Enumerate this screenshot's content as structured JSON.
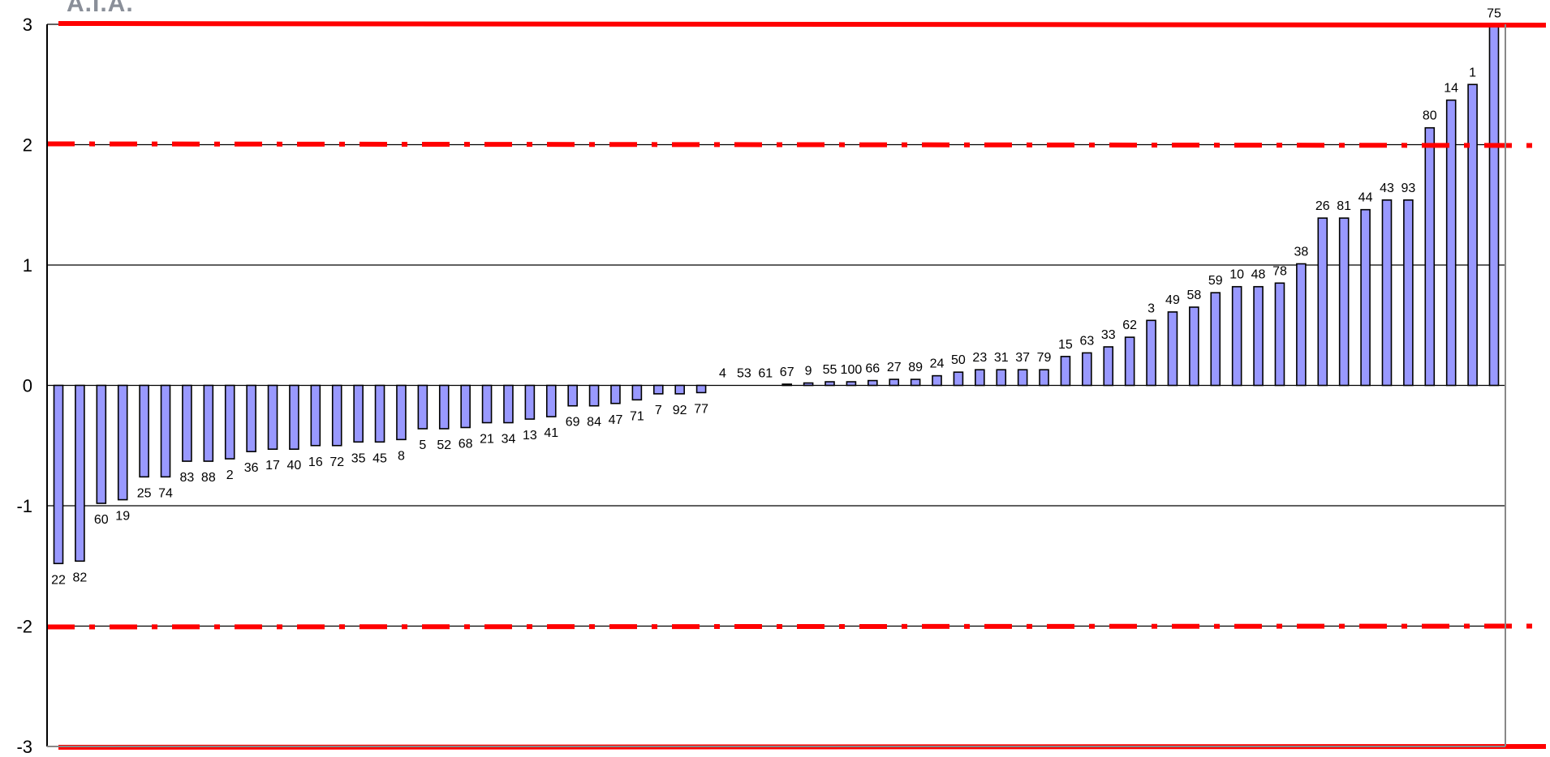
{
  "header": {
    "corner_text": "A.I.A."
  },
  "chart_data": {
    "type": "bar",
    "title": "",
    "xlabel": "",
    "ylabel": "",
    "ylim": [
      -3,
      3
    ],
    "yticks": [
      3,
      2,
      1,
      0,
      -1,
      -2,
      -3
    ],
    "grid": true,
    "categories": [
      "22",
      "82",
      "60",
      "19",
      "25",
      "74",
      "83",
      "88",
      "2",
      "36",
      "17",
      "40",
      "16",
      "72",
      "35",
      "45",
      "8",
      "5",
      "52",
      "68",
      "21",
      "34",
      "13",
      "41",
      "69",
      "84",
      "47",
      "71",
      "7",
      "92",
      "77",
      "4",
      "53",
      "61",
      "67",
      "9",
      "55",
      "100",
      "66",
      "27",
      "89",
      "24",
      "50",
      "23",
      "31",
      "37",
      "79",
      "15",
      "63",
      "33",
      "62",
      "3",
      "49",
      "58",
      "59",
      "10",
      "48",
      "78",
      "38",
      "26",
      "81",
      "44",
      "43",
      "93",
      "80",
      "14",
      "1",
      "75"
    ],
    "values": [
      -1.48,
      -1.46,
      -0.98,
      -0.95,
      -0.76,
      -0.76,
      -0.63,
      -0.63,
      -0.61,
      -0.55,
      -0.53,
      -0.53,
      -0.5,
      -0.5,
      -0.47,
      -0.47,
      -0.45,
      -0.36,
      -0.36,
      -0.35,
      -0.31,
      -0.31,
      -0.28,
      -0.26,
      -0.17,
      -0.17,
      -0.15,
      -0.12,
      -0.07,
      -0.07,
      -0.06,
      0,
      0,
      0,
      0.01,
      0.02,
      0.03,
      0.03,
      0.04,
      0.05,
      0.05,
      0.08,
      0.11,
      0.13,
      0.13,
      0.13,
      0.13,
      0.24,
      0.27,
      0.32,
      0.4,
      0.54,
      0.61,
      0.65,
      0.77,
      0.82,
      0.82,
      0.85,
      1.01,
      1.39,
      1.39,
      1.46,
      1.54,
      1.54,
      2.14,
      2.37,
      2.5,
      2.99
    ],
    "reference_lines": [
      {
        "value": 3,
        "style": "solid",
        "color": "#ff0000"
      },
      {
        "value": 2,
        "style": "dash-dot",
        "color": "#ff0000"
      },
      {
        "value": -2,
        "style": "dash-dot",
        "color": "#ff0000"
      },
      {
        "value": -3,
        "style": "solid",
        "color": "#ff0000"
      }
    ],
    "colors": {
      "bar_fill": "#9999ff",
      "bar_stroke": "#000000",
      "grid": "#000000",
      "reference": "#ff0000"
    }
  }
}
